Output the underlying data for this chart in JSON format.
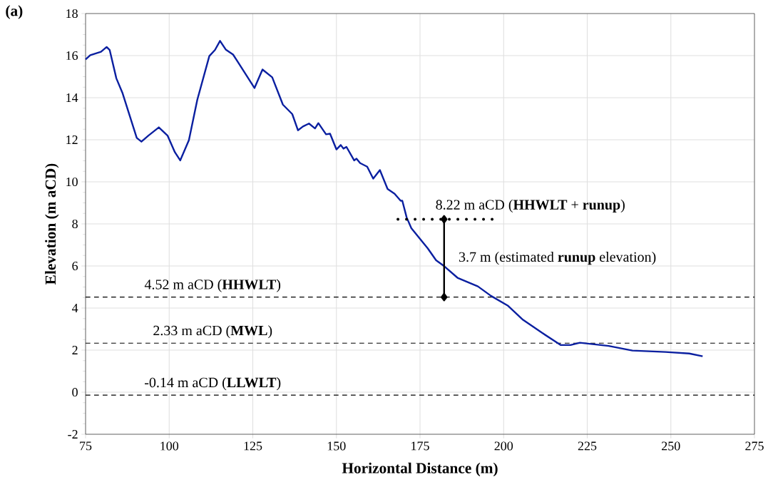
{
  "chart_data": {
    "type": "line",
    "title": "(a)",
    "xlabel": "Horizontal Distance (m)",
    "ylabel": "Elevation (m aCD)",
    "xlim": [
      75,
      275
    ],
    "xticks": [
      75,
      100,
      125,
      150,
      175,
      200,
      225,
      250,
      275
    ],
    "ylim": [
      -2,
      18
    ],
    "yticks": [
      -2,
      0,
      2,
      4,
      6,
      8,
      10,
      12,
      14,
      16,
      18
    ],
    "grid": true,
    "series": [
      {
        "color": "#0a1fa0",
        "line_style": "solid",
        "marker": "none",
        "x": [
          75,
          76.4,
          79.6,
          81.3,
          82.2,
          84.2,
          86.0,
          90.3,
          91.7,
          93.8,
          96.9,
          99.5,
          101.7,
          103.3,
          105.9,
          108.4,
          112.0,
          113.7,
          115.2,
          116.9,
          119.1,
          120.5,
          125.5,
          127.9,
          130.8,
          134.0,
          136.8,
          138.5,
          140.0,
          141.8,
          143.6,
          144.6,
          146.9,
          148.1,
          150.0,
          151.3,
          152.1,
          153.0,
          155.3,
          156.0,
          157.1,
          159.2,
          161.0,
          163.0,
          165.3,
          167.4,
          169.2,
          169.7,
          171.0,
          172.4,
          177.3,
          179.8,
          182.3,
          186.2,
          192.3,
          196.2,
          201.2,
          205.8,
          211.5,
          217.1,
          220.0,
          222.8,
          231.4,
          238.5,
          248.4,
          255.5,
          259.5
        ],
        "values": [
          15.82,
          16.02,
          16.18,
          16.41,
          16.27,
          14.92,
          14.24,
          12.09,
          11.91,
          12.2,
          12.59,
          12.2,
          11.41,
          11.02,
          11.98,
          13.9,
          15.98,
          16.27,
          16.7,
          16.29,
          16.05,
          15.71,
          14.46,
          15.34,
          14.97,
          13.67,
          13.22,
          12.45,
          12.63,
          12.77,
          12.54,
          12.79,
          12.26,
          12.29,
          11.54,
          11.75,
          11.58,
          11.66,
          11.02,
          11.1,
          10.89,
          10.72,
          10.15,
          10.56,
          9.66,
          9.43,
          9.1,
          9.1,
          8.31,
          7.8,
          6.84,
          6.27,
          5.98,
          5.44,
          5.03,
          4.58,
          4.12,
          3.44,
          2.82,
          2.24,
          2.24,
          2.35,
          2.2,
          1.98,
          1.91,
          1.84,
          1.71
        ]
      },
      {
        "color": "#000000",
        "line_style": "dotted",
        "marker": "none",
        "x": [
          168.4,
          196.9
        ],
        "values": [
          8.22,
          8.22
        ]
      },
      {
        "color": "#000000",
        "line_style": "solid",
        "marker": "diamond",
        "x": [
          182.2,
          182.2
        ],
        "values": [
          4.52,
          8.22
        ]
      }
    ],
    "ref_lines": [
      {
        "axis": "y",
        "value": 4.52,
        "label": "4.52 m aCD (**HHWLT**)",
        "color": "#000000",
        "line_style": "dashed"
      },
      {
        "axis": "y",
        "value": 2.33,
        "label": "2.33 m aCD (**MWL**)",
        "color": "#000000",
        "line_style": "dashed"
      },
      {
        "axis": "y",
        "value": -0.14,
        "label": "-0.14 m aCD (**LLWLT**)",
        "color": "#000000",
        "line_style": "dashed"
      }
    ],
    "annotations": [
      {
        "text": "8.22 m aCD (**HHWLT** + **runup**)",
        "x": 196.9,
        "y": 8.22
      },
      {
        "text": "3.7 m (estimated **runup** elevation)",
        "x": 182.2,
        "y": 6.37
      }
    ]
  }
}
